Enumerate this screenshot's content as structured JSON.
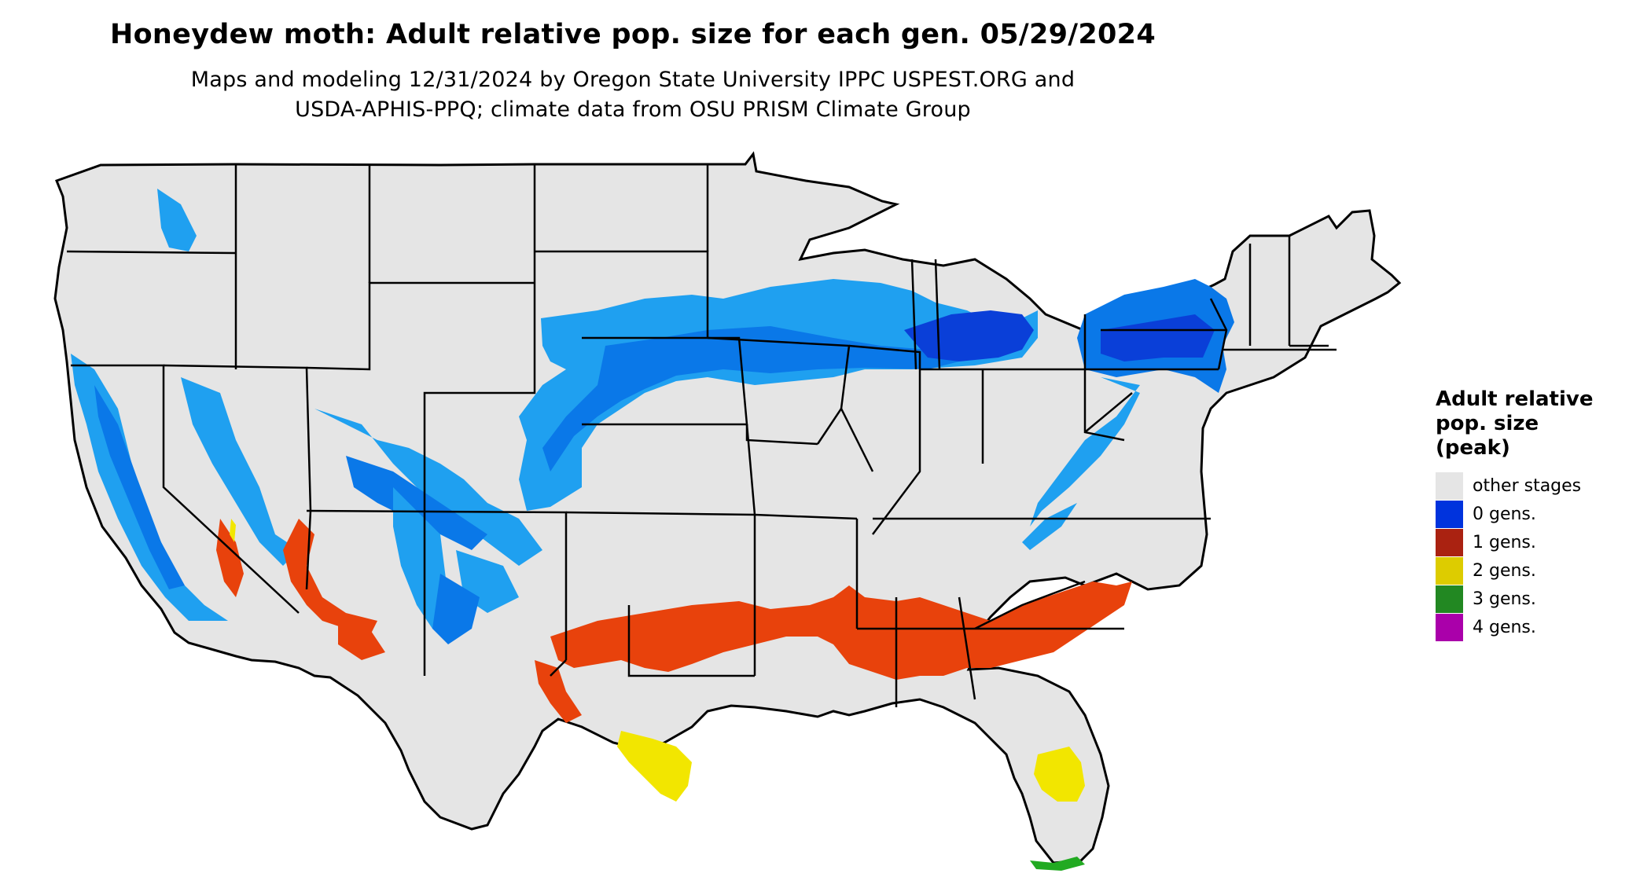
{
  "title": "Honeydew moth: Adult relative pop. size for each gen. 05/29/2024",
  "subtitle_line1": "Maps and modeling 12/31/2024 by Oregon State University IPPC USPEST.ORG and",
  "subtitle_line2": "USDA-APHIS-PPQ; climate data from OSU PRISM Climate Group",
  "legend": {
    "title_lines": [
      "Adult relative",
      "pop. size",
      "(peak)"
    ],
    "items": [
      {
        "label": "other stages",
        "color": "#e5e5e5"
      },
      {
        "label": "0 gens.",
        "color": "#0033dd"
      },
      {
        "label": "1 gens.",
        "color": "#aa2211"
      },
      {
        "label": "2 gens.",
        "color": "#ddcc00"
      },
      {
        "label": "3 gens.",
        "color": "#228822"
      },
      {
        "label": "4 gens.",
        "color": "#aa00aa"
      }
    ]
  },
  "map_colors": {
    "land": "#e5e5e5",
    "border": "#000000",
    "zero_gen_light": "#1fa0f0",
    "zero_gen_mid": "#0a78e8",
    "zero_gen_dark": "#0a3fd8",
    "one_gen": "#e8420c",
    "two_gen": "#f2e600",
    "three_gen": "#22aa22"
  }
}
